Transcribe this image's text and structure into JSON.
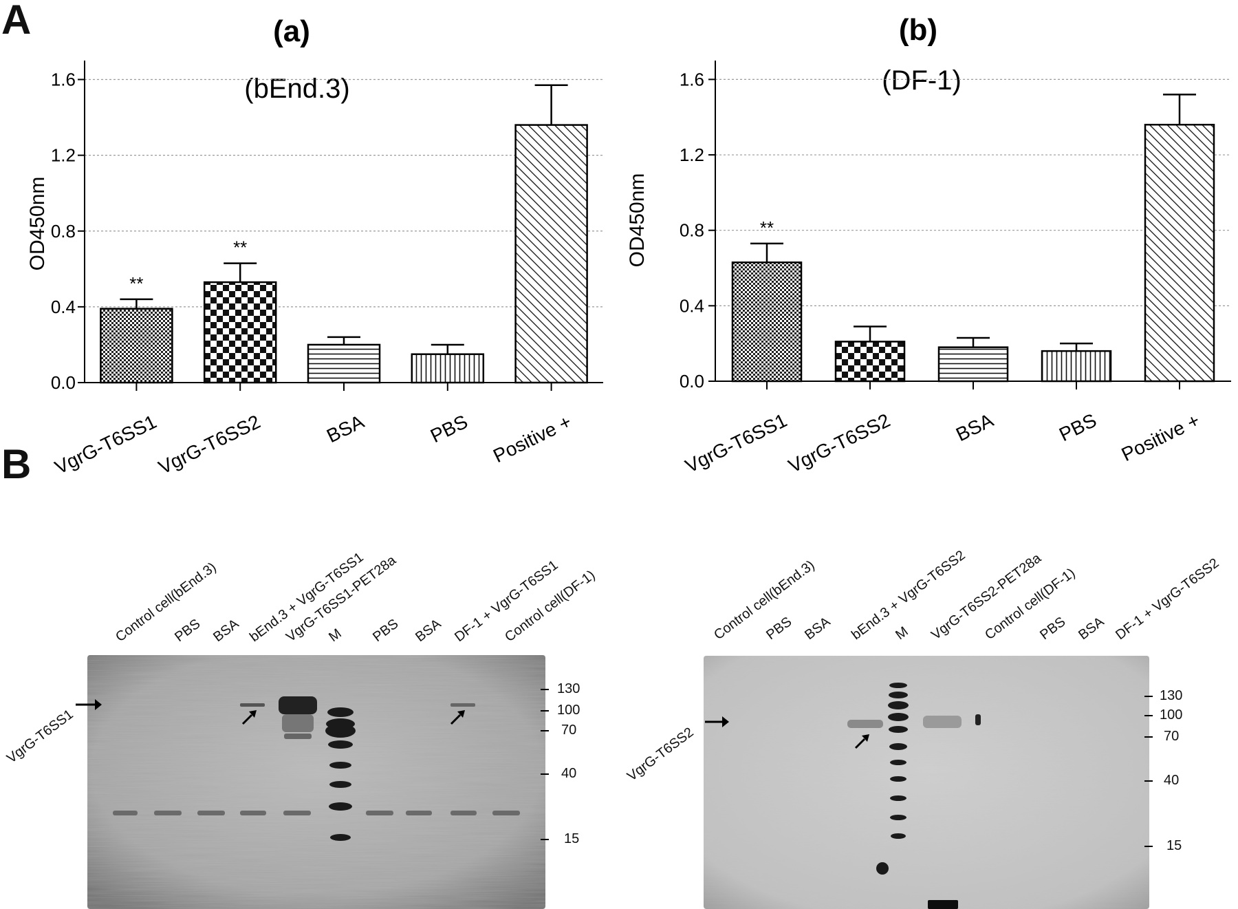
{
  "panel_A_letter": "A",
  "panel_B_letter": "B",
  "chart_data": [
    {
      "type": "bar",
      "panel": "(a)",
      "title": "(bEnd.3)",
      "ylabel": "OD450nm",
      "xlabel": "",
      "categories": [
        "VgrG-T6SS1",
        "VgrG-T6SS2",
        "BSA",
        "PBS",
        "Positive +"
      ],
      "values": [
        0.39,
        0.53,
        0.2,
        0.15,
        1.36
      ],
      "errors": [
        0.05,
        0.1,
        0.04,
        0.05,
        0.21
      ],
      "annotations": [
        "**",
        "**",
        "",
        "",
        ""
      ],
      "patterns": [
        "fine-check",
        "checker",
        "horizontal",
        "vertical",
        "diagonal"
      ],
      "ylim": [
        0,
        1.7
      ],
      "yticks": [
        "0.0",
        "0.4",
        "0.8",
        "1.2",
        "1.6"
      ],
      "grid": true
    },
    {
      "type": "bar",
      "panel": "(b)",
      "title": "(DF-1)",
      "ylabel": "OD450nm",
      "xlabel": "",
      "categories": [
        "VgrG-T6SS1",
        "VgrG-T6SS2",
        "BSA",
        "PBS",
        "Positive +"
      ],
      "values": [
        0.63,
        0.21,
        0.18,
        0.16,
        1.36
      ],
      "errors": [
        0.1,
        0.08,
        0.05,
        0.04,
        0.16
      ],
      "annotations": [
        "**",
        "",
        "",
        "",
        ""
      ],
      "patterns": [
        "fine-check",
        "checker",
        "horizontal",
        "vertical",
        "diagonal"
      ],
      "ylim": [
        0,
        1.7
      ],
      "yticks": [
        "0.0",
        "0.4",
        "0.8",
        "1.2",
        "1.6"
      ],
      "grid": true
    }
  ],
  "gels": [
    {
      "target_label": "VgrG-T6SS1",
      "lanes": [
        "Control cell(bEnd.3)",
        "PBS",
        "BSA",
        "bEnd.3 + VgrG-T6SS1",
        "VgrG-T6SS1-PET28a",
        "M",
        "PBS",
        "BSA",
        "DF-1 + VgrG-T6SS1",
        "Control cell(DF-1)"
      ],
      "markers": [
        "130",
        "100",
        "70",
        "40",
        "15"
      ]
    },
    {
      "target_label": "VgrG-T6SS2",
      "lanes": [
        "Control cell(bEnd.3)",
        "PBS",
        "BSA",
        "bEnd.3 + VgrG-T6SS2",
        "M",
        "VgrG-T6SS2-PET28a",
        "Control cell(DF-1)",
        "PBS",
        "BSA",
        "DF-1 + VgrG-T6SS2"
      ],
      "markers": [
        "130",
        "100",
        "70",
        "40",
        "15"
      ]
    }
  ]
}
